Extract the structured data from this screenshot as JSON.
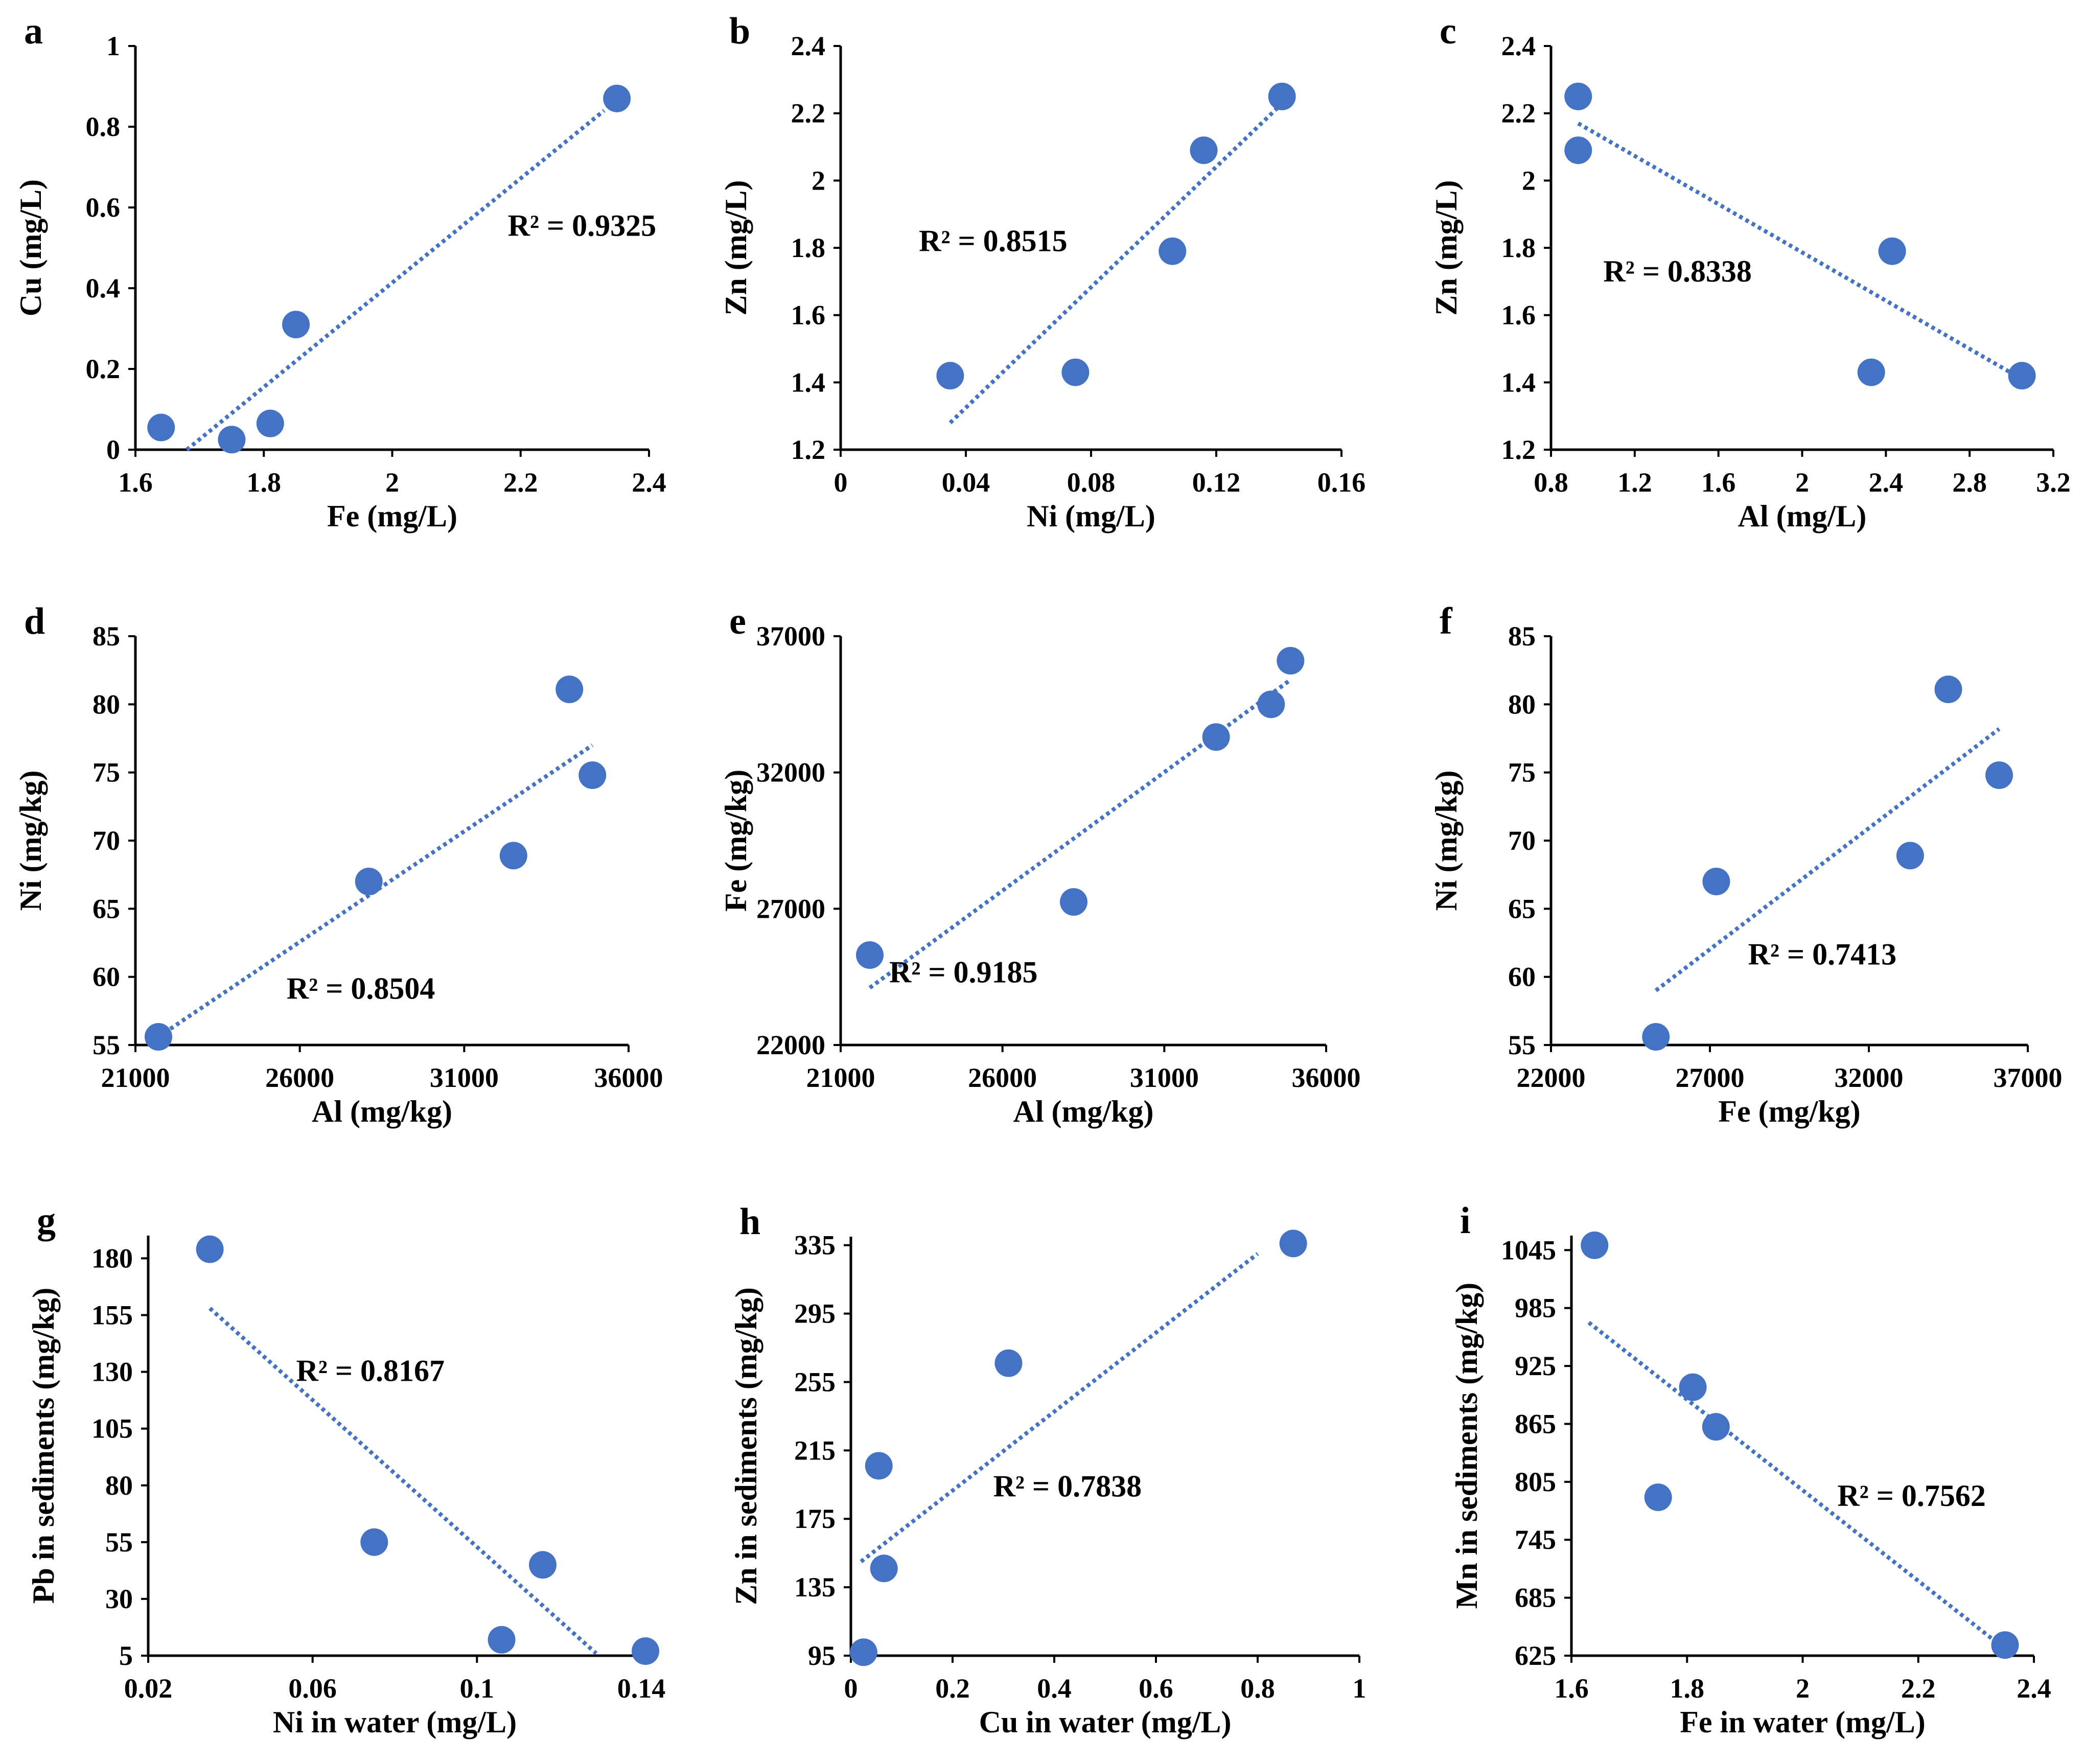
{
  "style": {
    "marker_color": "#4472C4",
    "trend_color": "#4472C4"
  },
  "chart_data": [
    {
      "id": "a",
      "type": "scatter",
      "title": "a",
      "xlabel": "Fe (mg/L)",
      "ylabel": "Cu (mg/L)",
      "xlim": [
        1.6,
        2.4
      ],
      "ylim": [
        0,
        1
      ],
      "xticks": [
        1.6,
        1.8,
        2.0,
        2.2,
        2.4
      ],
      "xtick_labels": [
        "1.6",
        "1.8",
        "2",
        "2.2",
        "2.4"
      ],
      "yticks": [
        0,
        0.2,
        0.4,
        0.6,
        0.8,
        1.0
      ],
      "ytick_labels": [
        "0",
        "0.2",
        "0.4",
        "0.6",
        "0.8",
        "1"
      ],
      "x": [
        1.64,
        1.75,
        1.81,
        1.85,
        2.35
      ],
      "y": [
        0.055,
        0.025,
        0.065,
        0.31,
        0.87
      ],
      "trendline": [
        [
          1.68,
          0.0
        ],
        [
          2.33,
          0.84
        ]
      ],
      "r2_label": "R² = 0.9325",
      "r2_pos": [
        2.18,
        0.53
      ]
    },
    {
      "id": "b",
      "type": "scatter",
      "title": "b",
      "xlabel": "Ni (mg/L)",
      "ylabel": "Zn (mg/L)",
      "xlim": [
        0,
        0.16
      ],
      "ylim": [
        1.2,
        2.4
      ],
      "xticks": [
        0,
        0.04,
        0.08,
        0.12,
        0.16
      ],
      "xtick_labels": [
        "0",
        "0.04",
        "0.08",
        "0.12",
        "0.16"
      ],
      "yticks": [
        1.2,
        1.4,
        1.6,
        1.8,
        2.0,
        2.2,
        2.4
      ],
      "ytick_labels": [
        "1.2",
        "1.4",
        "1.6",
        "1.8",
        "2",
        "2.2",
        "2.4"
      ],
      "x": [
        0.035,
        0.075,
        0.106,
        0.116,
        0.141
      ],
      "y": [
        1.42,
        1.43,
        1.79,
        2.09,
        2.25
      ],
      "trendline": [
        [
          0.035,
          1.28
        ],
        [
          0.14,
          2.22
        ]
      ],
      "r2_label": "R² = 0.8515",
      "r2_pos": [
        0.025,
        1.79
      ]
    },
    {
      "id": "c",
      "type": "scatter",
      "title": "c",
      "xlabel": "Al (mg/L)",
      "ylabel": "Zn (mg/L)",
      "xlim": [
        0.8,
        3.2
      ],
      "ylim": [
        1.2,
        2.4
      ],
      "xticks": [
        0.8,
        1.2,
        1.6,
        2.0,
        2.4,
        2.8,
        3.2
      ],
      "xtick_labels": [
        "0.8",
        "1.2",
        "1.6",
        "2",
        "2.4",
        "2.8",
        "3.2"
      ],
      "yticks": [
        1.2,
        1.4,
        1.6,
        1.8,
        2.0,
        2.2,
        2.4
      ],
      "ytick_labels": [
        "1.2",
        "1.4",
        "1.6",
        "1.8",
        "2",
        "2.2",
        "2.4"
      ],
      "x": [
        0.93,
        0.93,
        2.43,
        2.33,
        3.05
      ],
      "y": [
        2.25,
        2.09,
        1.79,
        1.43,
        1.42
      ],
      "trendline": [
        [
          0.93,
          2.17
        ],
        [
          3.05,
          1.41
        ]
      ],
      "r2_label": "R² = 0.8338",
      "r2_pos": [
        1.05,
        1.7
      ]
    },
    {
      "id": "d",
      "type": "scatter",
      "title": "d",
      "xlabel": "Al (mg/kg)",
      "ylabel": "Ni (mg/kg)",
      "xlim": [
        21000,
        36000
      ],
      "ylim": [
        55,
        85
      ],
      "xticks": [
        21000,
        26000,
        31000,
        36000
      ],
      "xtick_labels": [
        "21000",
        "26000",
        "31000",
        "36000"
      ],
      "yticks": [
        55,
        60,
        65,
        70,
        75,
        80,
        85
      ],
      "ytick_labels": [
        "55",
        "60",
        "65",
        "70",
        "75",
        "80",
        "85"
      ],
      "x": [
        21700,
        28100,
        32500,
        34200,
        34900
      ],
      "y": [
        55.6,
        67.0,
        68.9,
        81.1,
        74.8
      ],
      "trendline": [
        [
          21700,
          55.6
        ],
        [
          34900,
          77.0
        ]
      ],
      "r2_label": "R² = 0.8504",
      "r2_pos": [
        25600,
        58.4
      ]
    },
    {
      "id": "e",
      "type": "scatter",
      "title": "e",
      "xlabel": "Al (mg/kg)",
      "ylabel": "Fe (mg/kg)",
      "xlim": [
        21000,
        36000
      ],
      "ylim": [
        22000,
        37000
      ],
      "xticks": [
        21000,
        26000,
        31000,
        36000
      ],
      "xtick_labels": [
        "21000",
        "26000",
        "31000",
        "36000"
      ],
      "yticks": [
        22000,
        27000,
        32000,
        37000
      ],
      "ytick_labels": [
        "22000",
        "27000",
        "32000",
        "37000"
      ],
      "x": [
        21900,
        28200,
        32600,
        34300,
        34900
      ],
      "y": [
        25300,
        27250,
        33300,
        34500,
        36100
      ],
      "trendline": [
        [
          21900,
          24100
        ],
        [
          34900,
          35400
        ]
      ],
      "r2_label": "R² = 0.9185",
      "r2_pos": [
        22500,
        24300
      ]
    },
    {
      "id": "f",
      "type": "scatter",
      "title": "f",
      "xlabel": "Fe (mg/kg)",
      "ylabel": "Ni (mg/kg)",
      "xlim": [
        22000,
        37000
      ],
      "ylim": [
        55,
        85
      ],
      "xticks": [
        22000,
        27000,
        32000,
        37000
      ],
      "xtick_labels": [
        "22000",
        "27000",
        "32000",
        "37000"
      ],
      "yticks": [
        55,
        60,
        65,
        70,
        75,
        80,
        85
      ],
      "ytick_labels": [
        "55",
        "60",
        "65",
        "70",
        "75",
        "80",
        "85"
      ],
      "x": [
        25300,
        27200,
        33300,
        34500,
        36100
      ],
      "y": [
        55.6,
        67.0,
        68.9,
        81.1,
        74.8
      ],
      "trendline": [
        [
          25300,
          59.0
        ],
        [
          36100,
          78.2
        ]
      ],
      "r2_label": "R² = 0.7413",
      "r2_pos": [
        28200,
        60.9
      ]
    },
    {
      "id": "g",
      "type": "scatter",
      "title": "g",
      "xlabel": "Ni in water (mg/L)",
      "ylabel": "Pb in sediments (mg/kg)",
      "xlim": [
        0.02,
        0.14
      ],
      "ylim": [
        5,
        190
      ],
      "xticks": [
        0.02,
        0.06,
        0.1,
        0.14
      ],
      "xtick_labels": [
        "0.02",
        "0.06",
        "0.1",
        "0.14"
      ],
      "yticks": [
        5,
        30,
        55,
        80,
        105,
        130,
        155,
        180
      ],
      "ytick_labels": [
        "5",
        "30",
        "55",
        "80",
        "105",
        "130",
        "155",
        "180"
      ],
      "x": [
        0.035,
        0.075,
        0.106,
        0.116,
        0.141
      ],
      "y": [
        184,
        55,
        12,
        45,
        7
      ],
      "trendline": [
        [
          0.035,
          158
        ],
        [
          0.129,
          6
        ]
      ],
      "r2_label": "R² = 0.8167",
      "r2_pos": [
        0.056,
        126
      ]
    },
    {
      "id": "h",
      "type": "scatter",
      "title": "h",
      "xlabel": "Cu in water (mg/L)",
      "ylabel": "Zn in sediments (mg/kg)",
      "xlim": [
        0,
        1
      ],
      "ylim": [
        95,
        340
      ],
      "xticks": [
        0,
        0.2,
        0.4,
        0.6,
        0.8,
        1.0
      ],
      "xtick_labels": [
        "0",
        "0.2",
        "0.4",
        "0.6",
        "0.8",
        "1"
      ],
      "yticks": [
        95,
        135,
        175,
        215,
        255,
        295,
        335
      ],
      "ytick_labels": [
        "95",
        "135",
        "175",
        "215",
        "255",
        "295",
        "335"
      ],
      "x": [
        0.025,
        0.055,
        0.065,
        0.31,
        0.87
      ],
      "y": [
        97,
        206,
        146,
        266,
        336
      ],
      "trendline": [
        [
          0.02,
          150
        ],
        [
          0.8,
          330
        ]
      ],
      "r2_label": "R² = 0.7838",
      "r2_pos": [
        0.28,
        188
      ]
    },
    {
      "id": "i",
      "type": "scatter",
      "title": "i",
      "xlabel": "Fe in water (mg/L)",
      "ylabel": "Mn in sediments (mg/kg)",
      "xlim": [
        1.6,
        2.4
      ],
      "ylim": [
        625,
        1060
      ],
      "xticks": [
        1.6,
        1.8,
        2.0,
        2.2,
        2.4
      ],
      "xtick_labels": [
        "1.6",
        "1.8",
        "2",
        "2.2",
        "2.4"
      ],
      "yticks": [
        625,
        685,
        745,
        805,
        865,
        925,
        985,
        1045
      ],
      "ytick_labels": [
        "625",
        "685",
        "745",
        "805",
        "865",
        "925",
        "985",
        "1045"
      ],
      "x": [
        1.64,
        1.75,
        1.81,
        1.85,
        2.35
      ],
      "y": [
        1050,
        789,
        903,
        862,
        636
      ],
      "trendline": [
        [
          1.63,
          970
        ],
        [
          2.35,
          632
        ]
      ],
      "r2_label": "R² = 0.7562",
      "r2_pos": [
        2.06,
        780
      ]
    }
  ]
}
